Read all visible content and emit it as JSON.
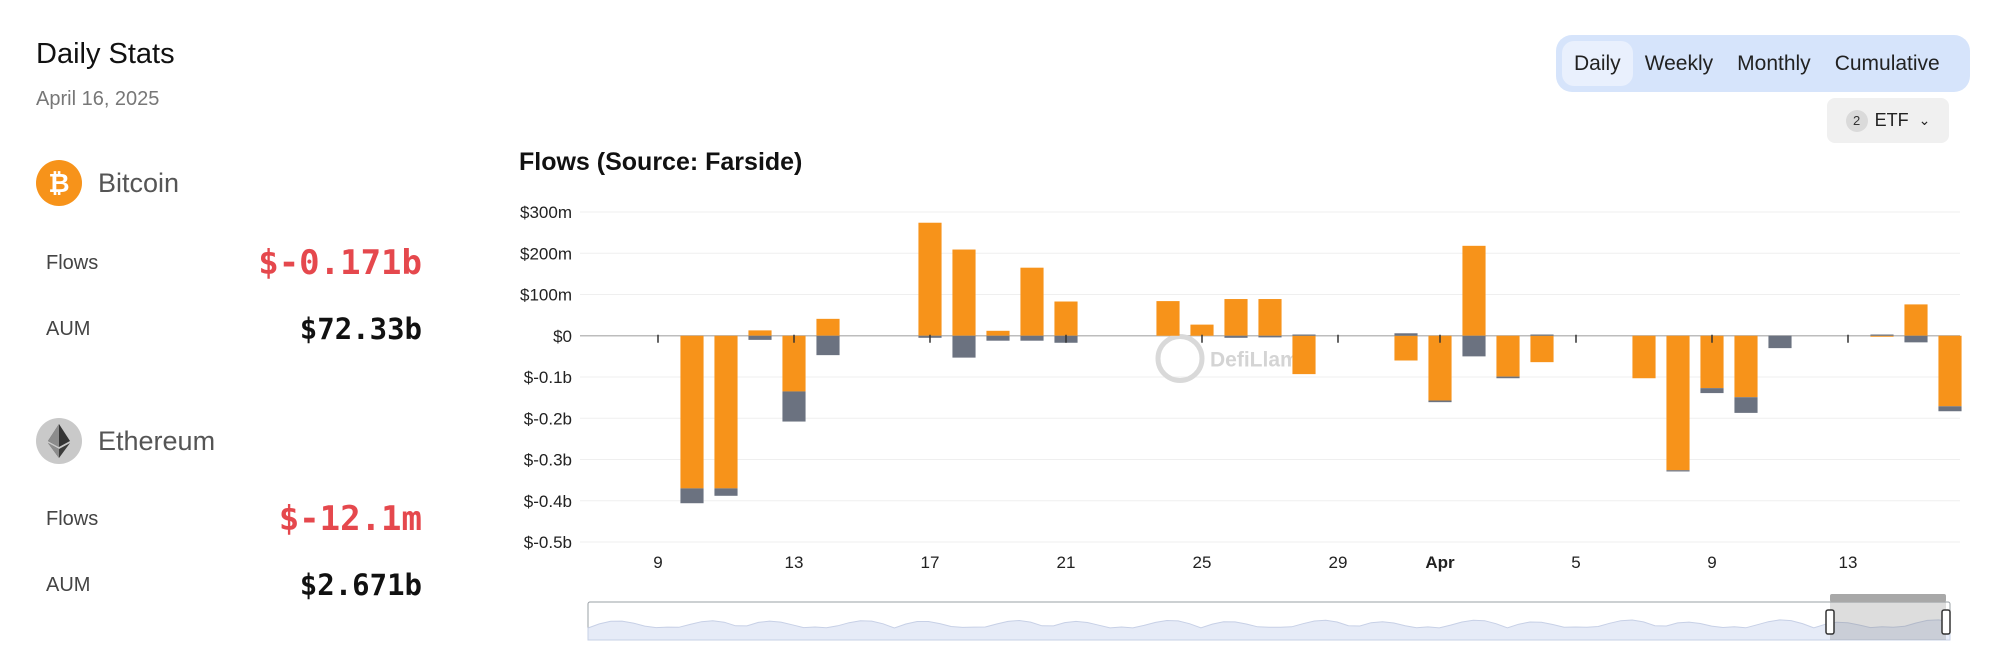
{
  "header": {
    "title": "Daily Stats",
    "date": "April 16, 2025"
  },
  "bitcoin": {
    "name": "Bitcoin",
    "icon": "bitcoin-icon",
    "flows_label": "Flows",
    "flows_value": "$-0.171b",
    "aum_label": "AUM",
    "aum_value": "$72.33b"
  },
  "ethereum": {
    "name": "Ethereum",
    "icon": "ethereum-icon",
    "flows_label": "Flows",
    "flows_value": "$-12.1m",
    "aum_label": "AUM",
    "aum_value": "$2.671b"
  },
  "tabs": [
    {
      "label": "Daily",
      "active": true
    },
    {
      "label": "Weekly",
      "active": false
    },
    {
      "label": "Monthly",
      "active": false
    },
    {
      "label": "Cumulative",
      "active": false
    }
  ],
  "etf_filter": {
    "count": "2",
    "label": "ETF"
  },
  "watermark": "DefiLlama",
  "colors": {
    "bitcoin": "#f7931a",
    "ethereum": "#6b7280",
    "negative": "#e5484d"
  },
  "chart_data": {
    "type": "bar",
    "stacked": true,
    "title": "Flows (Source: Farside)",
    "xlabel": "",
    "ylabel": "",
    "ylim": [
      -500,
      300
    ],
    "y_ticks": [
      300,
      200,
      100,
      0,
      -100,
      -200,
      -300,
      -400,
      -500
    ],
    "y_tick_labels": [
      "$300m",
      "$200m",
      "$100m",
      "$0",
      "$-0.1b",
      "$-0.2b",
      "$-0.3b",
      "$-0.4b",
      "$-0.5b"
    ],
    "x_ticks": [
      {
        "date": "2025-03-09",
        "label": "9"
      },
      {
        "date": "2025-03-13",
        "label": "13"
      },
      {
        "date": "2025-03-17",
        "label": "17"
      },
      {
        "date": "2025-03-21",
        "label": "21"
      },
      {
        "date": "2025-03-25",
        "label": "25"
      },
      {
        "date": "2025-03-29",
        "label": "29"
      },
      {
        "date": "2025-04-01",
        "label": "Apr",
        "bold": true
      },
      {
        "date": "2025-04-05",
        "label": "5"
      },
      {
        "date": "2025-04-09",
        "label": "9"
      },
      {
        "date": "2025-04-13",
        "label": "13"
      }
    ],
    "x_range": [
      "2025-03-07",
      "2025-04-16"
    ],
    "grid": true,
    "series": [
      {
        "name": "Bitcoin",
        "color": "#f7931a",
        "points": [
          [
            "2025-03-10",
            -370
          ],
          [
            "2025-03-11",
            -370
          ],
          [
            "2025-03-12",
            13
          ],
          [
            "2025-03-13",
            -135
          ],
          [
            "2025-03-14",
            41
          ],
          [
            "2025-03-17",
            274
          ],
          [
            "2025-03-18",
            209
          ],
          [
            "2025-03-19",
            12
          ],
          [
            "2025-03-20",
            165
          ],
          [
            "2025-03-21",
            83
          ],
          [
            "2025-03-24",
            84
          ],
          [
            "2025-03-25",
            27
          ],
          [
            "2025-03-26",
            89
          ],
          [
            "2025-03-27",
            89
          ],
          [
            "2025-03-28",
            -93
          ],
          [
            "2025-03-31",
            -60
          ],
          [
            "2025-04-01",
            -157
          ],
          [
            "2025-04-02",
            218
          ],
          [
            "2025-04-03",
            -99
          ],
          [
            "2025-04-04",
            -64
          ],
          [
            "2025-04-07",
            -103
          ],
          [
            "2025-04-08",
            -326
          ],
          [
            "2025-04-09",
            -127
          ],
          [
            "2025-04-10",
            -149
          ],
          [
            "2025-04-11",
            0
          ],
          [
            "2025-04-14",
            -2
          ],
          [
            "2025-04-15",
            76
          ],
          [
            "2025-04-16",
            -171
          ]
        ]
      },
      {
        "name": "Ethereum",
        "color": "#6b7280",
        "points": [
          [
            "2025-03-10",
            -36
          ],
          [
            "2025-03-11",
            -18
          ],
          [
            "2025-03-12",
            -10
          ],
          [
            "2025-03-13",
            -73
          ],
          [
            "2025-03-14",
            -47
          ],
          [
            "2025-03-17",
            -5
          ],
          [
            "2025-03-18",
            -53
          ],
          [
            "2025-03-19",
            -12
          ],
          [
            "2025-03-20",
            -12
          ],
          [
            "2025-03-21",
            -17
          ],
          [
            "2025-03-24",
            0
          ],
          [
            "2025-03-25",
            0
          ],
          [
            "2025-03-26",
            -5
          ],
          [
            "2025-03-27",
            -4
          ],
          [
            "2025-03-28",
            3
          ],
          [
            "2025-03-31",
            6
          ],
          [
            "2025-04-01",
            -4
          ],
          [
            "2025-04-02",
            -50
          ],
          [
            "2025-04-03",
            -4
          ],
          [
            "2025-04-04",
            3
          ],
          [
            "2025-04-07",
            0
          ],
          [
            "2025-04-08",
            -3
          ],
          [
            "2025-04-09",
            -12
          ],
          [
            "2025-04-10",
            -38
          ],
          [
            "2025-04-11",
            -30
          ],
          [
            "2025-04-14",
            3
          ],
          [
            "2025-04-15",
            -16
          ],
          [
            "2025-04-16",
            -12
          ]
        ]
      }
    ]
  }
}
